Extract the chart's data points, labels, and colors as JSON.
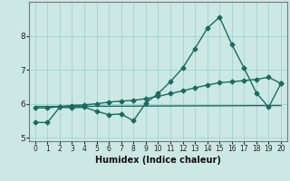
{
  "title": "",
  "xlabel": "Humidex (Indice chaleur)",
  "ylabel": "",
  "background_color": "#cce8e4",
  "grid_color": "#a8d4d0",
  "line_color": "#1a6b5e",
  "xlim": [
    -0.5,
    20.5
  ],
  "ylim": [
    4.9,
    9.0
  ],
  "yticks": [
    5,
    6,
    7,
    8
  ],
  "xticks": [
    0,
    1,
    2,
    3,
    4,
    5,
    6,
    7,
    8,
    9,
    10,
    11,
    12,
    13,
    14,
    15,
    16,
    17,
    18,
    19,
    20
  ],
  "line1_x": [
    0,
    1,
    2,
    3,
    4,
    5,
    6,
    7,
    8,
    9,
    10,
    11,
    12,
    13,
    14,
    15,
    16,
    17,
    18,
    19,
    20
  ],
  "line1_y": [
    5.45,
    5.45,
    5.9,
    5.88,
    5.9,
    5.78,
    5.68,
    5.7,
    5.5,
    6.02,
    6.3,
    6.65,
    7.05,
    7.62,
    8.22,
    8.55,
    7.75,
    7.05,
    6.32,
    5.9,
    6.6
  ],
  "line2_x": [
    0,
    1,
    2,
    3,
    4,
    5,
    6,
    7,
    8,
    9,
    10,
    11,
    12,
    13,
    14,
    15,
    16,
    17,
    18,
    19,
    20
  ],
  "line2_y": [
    5.88,
    5.88,
    5.92,
    5.95,
    5.97,
    6.0,
    6.05,
    6.08,
    6.1,
    6.15,
    6.22,
    6.3,
    6.38,
    6.47,
    6.55,
    6.62,
    6.65,
    6.68,
    6.72,
    6.78,
    6.6
  ],
  "line3_x": [
    0,
    20
  ],
  "line3_y": [
    5.92,
    5.95
  ],
  "marker_size": 2.5,
  "line_width": 1.0
}
